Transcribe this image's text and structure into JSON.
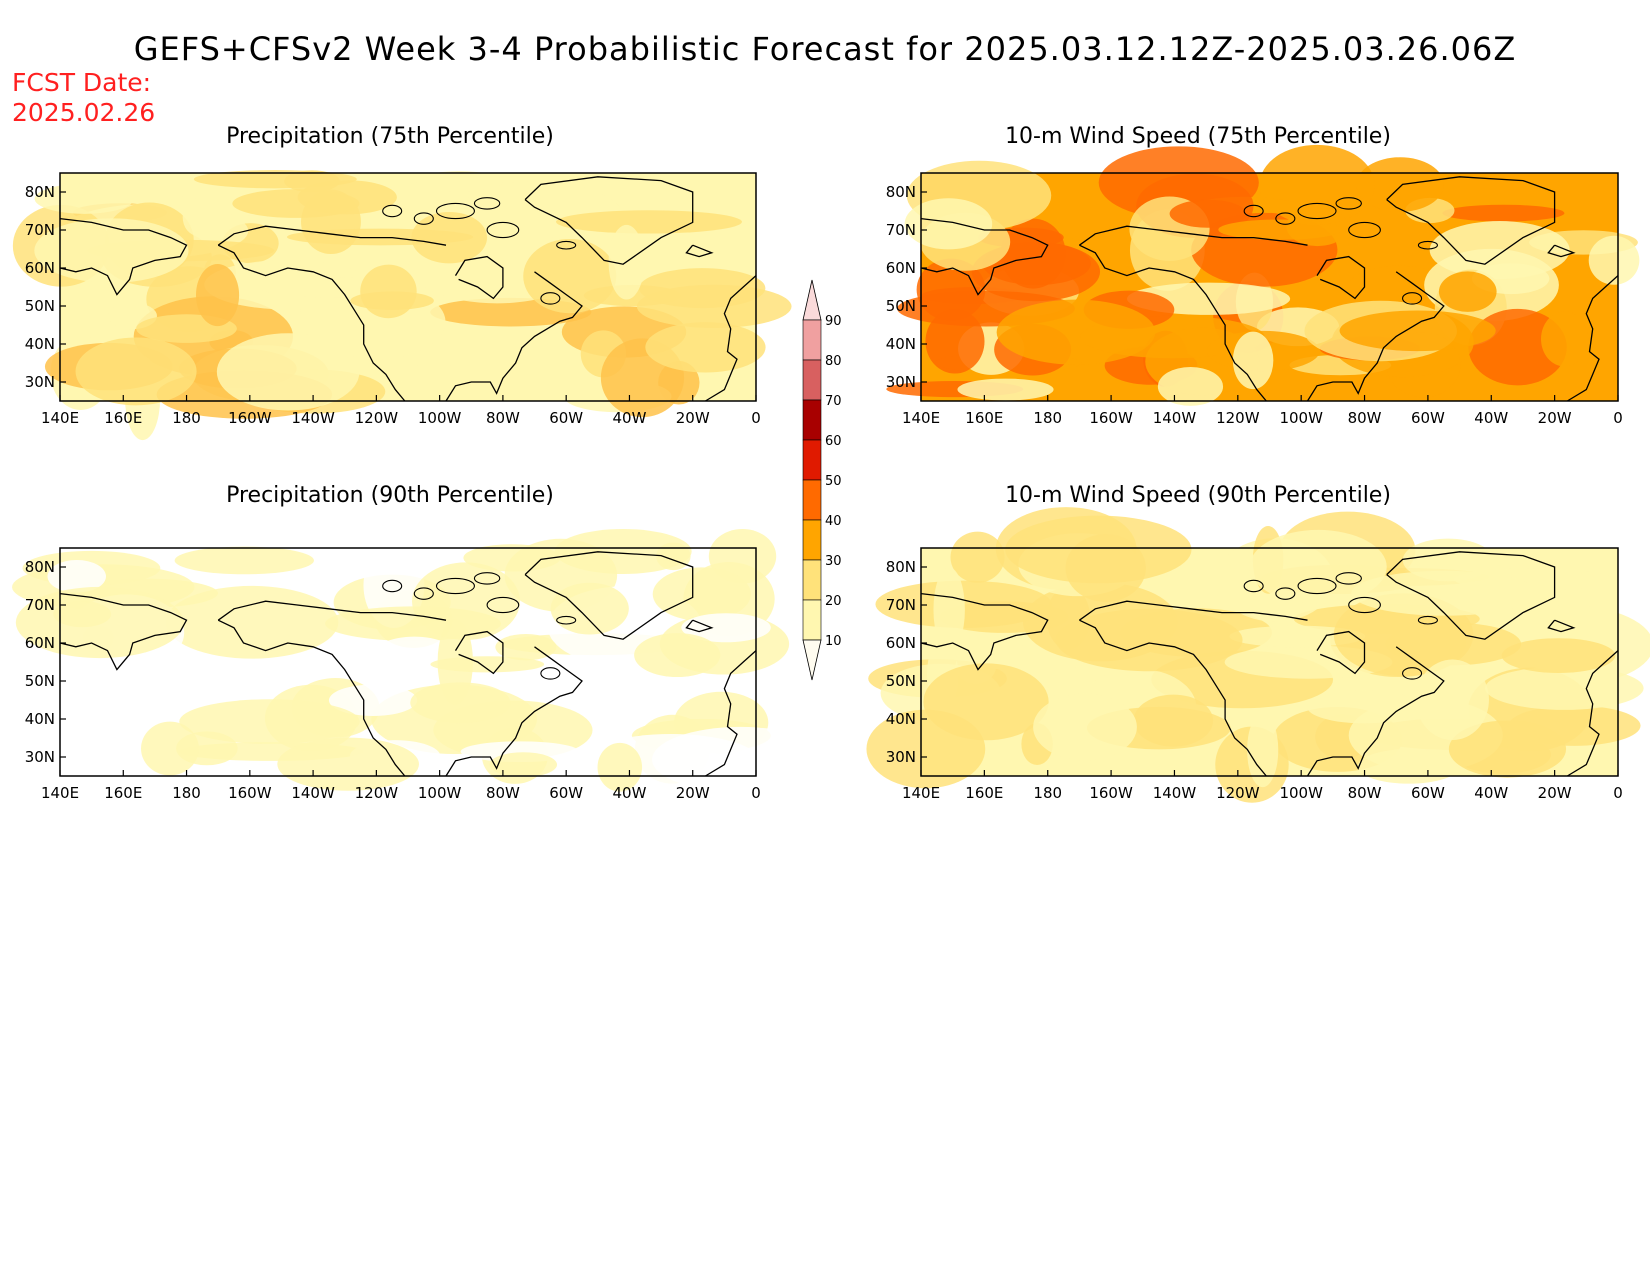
{
  "title": "GEFS+CFSv2 Week 3-4 Probabilistic Forecast for 2025.03.12.12Z-2025.03.26.06Z",
  "fcst_label": "FCST Date:",
  "fcst_date": "2025.02.26",
  "x_ticks": [
    "140E",
    "160E",
    "180",
    "160W",
    "140W",
    "120W",
    "100W",
    "80W",
    "60W",
    "40W",
    "20W",
    "0"
  ],
  "y_ticks": [
    "80N",
    "70N",
    "60N",
    "50N",
    "40N",
    "30N"
  ],
  "lon_range": [
    140,
    360
  ],
  "lat_range": [
    25,
    85
  ],
  "colorbar": {
    "levels": [
      "10",
      "20",
      "30",
      "40",
      "50",
      "60",
      "70",
      "80",
      "90"
    ],
    "colors": [
      "#fffcf0",
      "#fff7b0",
      "#ffe27a",
      "#ffa500",
      "#ff6a00",
      "#e01a00",
      "#a80000",
      "#d86060",
      "#f0a0a0",
      "#fadada"
    ]
  },
  "panels": [
    {
      "title": "Precipitation (75th Percentile)",
      "palette": "low"
    },
    {
      "title": "10-m Wind Speed (75th Percentile)",
      "palette": "high"
    },
    {
      "title": "Precipitation (90th Percentile)",
      "palette": "min"
    },
    {
      "title": "10-m Wind Speed (90th Percentile)",
      "palette": "mid"
    }
  ]
}
